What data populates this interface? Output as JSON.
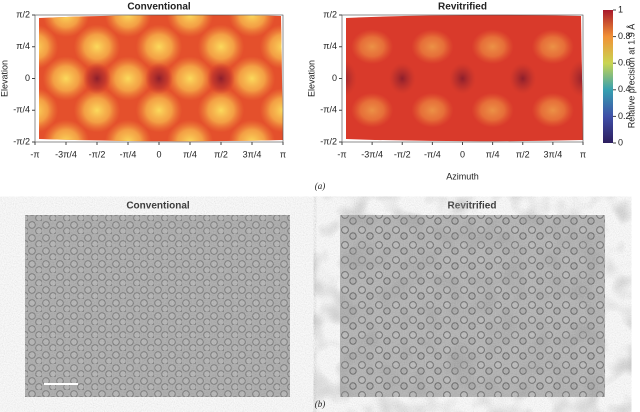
{
  "panel_a": {
    "label": "(a)",
    "plots": [
      {
        "title": "Conventional",
        "y_label": "Elevation"
      },
      {
        "title": "Revitrified",
        "y_label": "Elevation",
        "x_label": "Azimuth"
      }
    ],
    "x_ticks": [
      "-π",
      "-3π/4",
      "-π/2",
      "-π/4",
      "0",
      "π/4",
      "π/2",
      "3π/4",
      "π"
    ],
    "y_ticks": [
      "π/2",
      "π/4",
      "0",
      "-π/4",
      "-π/2"
    ],
    "colorbar": {
      "label": "Relative precision at 1.9 Å",
      "ylim": [
        0,
        1
      ],
      "ticks": [
        1,
        0.8,
        0.6,
        0.4,
        0.2,
        0
      ]
    }
  },
  "panel_b": {
    "label": "(b)",
    "titles": [
      "Conventional",
      "Revitrified"
    ]
  }
}
